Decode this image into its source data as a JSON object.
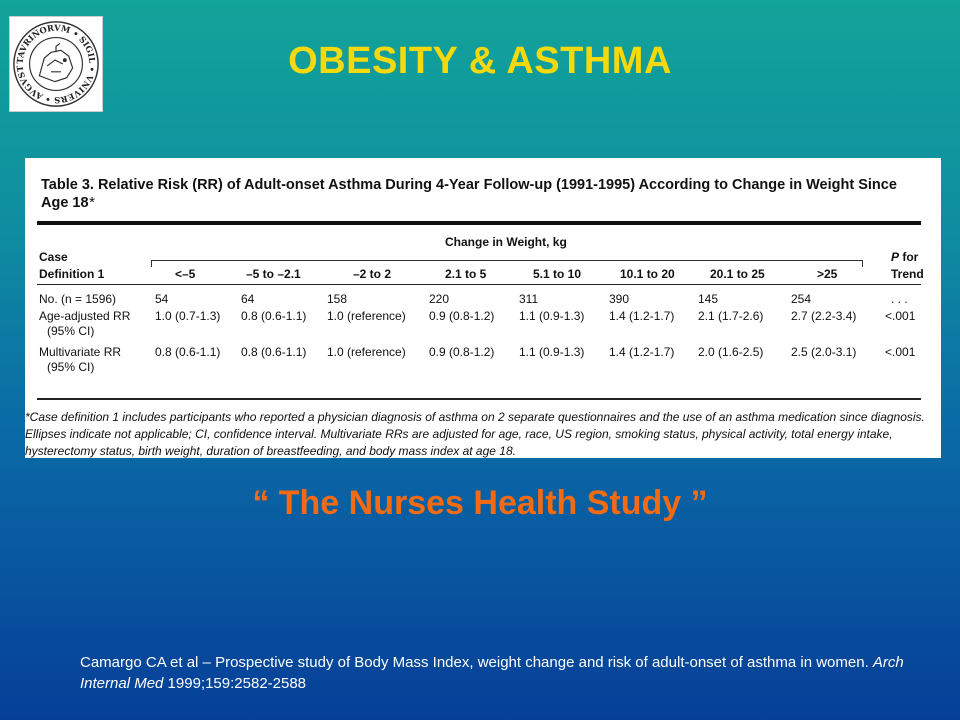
{
  "slide": {
    "title": "OBESITY & ASTHMA",
    "subtitle": "“ The Nurses Health Study ”",
    "seal_text": "TAVRINORVM • SIGIL • VNIVERS • AVGVSTAE",
    "citation": {
      "part1": "Camargo CA et al – Prospective study of Body Mass Index, weight change and risk of adult-onset of asthma in women. ",
      "journal": "Arch Internal Med",
      "part2": " 1999;159:2582-2588"
    }
  },
  "table": {
    "caption": "Table 3. Relative Risk (RR) of Adult-onset Asthma During 4-Year Follow-up (1991-1995) According to Change in Weight Since Age 18",
    "caption_mark": "*",
    "spanner": "Change in Weight, kg",
    "case_label_1": "Case",
    "case_label_2": "Definition 1",
    "p_label_1": "P for",
    "p_label_2": "Trend",
    "columns": [
      "<–5",
      "–5 to –2.1",
      "–2 to 2",
      "2.1 to 5",
      "5.1 to 10",
      "10.1 to 20",
      "20.1 to 25",
      ">25"
    ],
    "rows": [
      {
        "label": "No. (n = 1596)",
        "label2": "",
        "values": [
          "54",
          "64",
          "158",
          "220",
          "311",
          "390",
          "145",
          "254"
        ],
        "p": ". . ."
      },
      {
        "label": "Age-adjusted RR",
        "label2": "(95% CI)",
        "values": [
          "1.0 (0.7-1.3)",
          "0.8 (0.6-1.1)",
          "1.0 (reference)",
          "0.9 (0.8-1.2)",
          "1.1 (0.9-1.3)",
          "1.4 (1.2-1.7)",
          "2.1 (1.7-2.6)",
          "2.7 (2.2-3.4)"
        ],
        "p": "<.001"
      },
      {
        "label": "Multivariate RR",
        "label2": "(95% CI)",
        "values": [
          "0.8 (0.6-1.1)",
          "0.8 (0.6-1.1)",
          "1.0 (reference)",
          "0.9 (0.8-1.2)",
          "1.1 (0.9-1.3)",
          "1.4 (1.2-1.7)",
          "2.0 (1.6-2.5)",
          "2.5 (2.0-3.1)"
        ],
        "p": "<.001"
      }
    ],
    "footnote": "*Case definition 1 includes participants who reported a physician diagnosis of asthma on 2 separate questionnaires and the use of an asthma medication since diagnosis. Ellipses indicate not applicable; CI, confidence interval. Multivariate RRs are adjusted for age, race, US region, smoking status, physical activity, total energy intake, hysterectomy status, birth weight, duration of breastfeeding, and body mass index at age 18."
  }
}
